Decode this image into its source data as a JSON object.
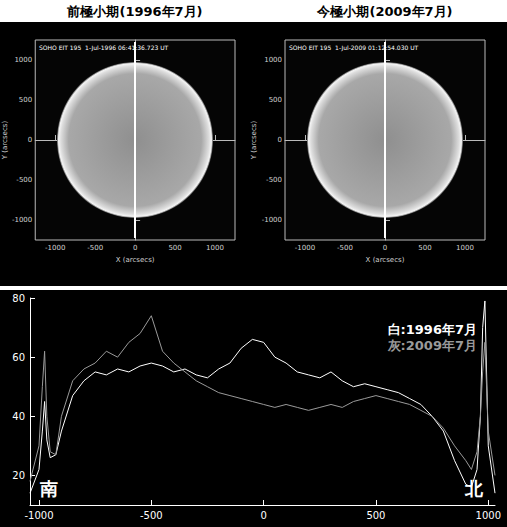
{
  "images": [
    {
      "title": "前極小期(1996年7月)",
      "caption": "SOHO EIT 195  1-Jul-1996 06:41:36.723 UT",
      "xlabel": "X (arcsecs)",
      "ylabel": "Y (arcsecs)",
      "xlim": [
        -1250,
        1250
      ],
      "xticks": [
        -1000,
        -500,
        0,
        500,
        1000
      ],
      "ylim": [
        -1250,
        1250
      ],
      "yticks": [
        -1000,
        -500,
        0,
        500,
        1000
      ]
    },
    {
      "title": "今極小期(2009年7月)",
      "caption": "SOHO EIT 195  1-Jul-2009 01:12:54.030 UT",
      "xlabel": "X (arcsecs)",
      "ylabel": "Y (arcsecs)",
      "xlim": [
        -1250,
        1250
      ],
      "xticks": [
        -1000,
        -500,
        0,
        500,
        1000
      ],
      "ylim": [
        -1250,
        1250
      ],
      "yticks": [
        -1000,
        -500,
        0,
        500,
        1000
      ]
    }
  ],
  "chart_data": {
    "type": "line",
    "x": [
      -1040,
      -1000,
      -985,
      -975,
      -965,
      -950,
      -925,
      -900,
      -850,
      -800,
      -750,
      -700,
      -650,
      -600,
      -550,
      -500,
      -450,
      -400,
      -350,
      -300,
      -250,
      -200,
      -150,
      -100,
      -50,
      0,
      50,
      100,
      150,
      200,
      250,
      300,
      350,
      400,
      450,
      500,
      550,
      600,
      650,
      700,
      750,
      800,
      850,
      900,
      925,
      950,
      965,
      975,
      985,
      1000,
      1030
    ],
    "series": [
      {
        "name": "白:1996年7月",
        "color": "#ffffff",
        "values": [
          14,
          22,
          35,
          45,
          32,
          26,
          27,
          35,
          47,
          52,
          55,
          54,
          56,
          55,
          57,
          58,
          57,
          55,
          56,
          54,
          53,
          56,
          58,
          63,
          66,
          65,
          60,
          58,
          55,
          54,
          53,
          55,
          52,
          50,
          51,
          50,
          49,
          48,
          46,
          44,
          40,
          35,
          25,
          17,
          16,
          22,
          40,
          70,
          79,
          30,
          14
        ]
      },
      {
        "name": "灰:2009年7月",
        "color": "#9a9a9a",
        "values": [
          18,
          30,
          50,
          62,
          40,
          28,
          27,
          40,
          52,
          56,
          58,
          62,
          60,
          65,
          68,
          74,
          62,
          58,
          55,
          52,
          50,
          48,
          47,
          46,
          45,
          44,
          43,
          44,
          43,
          42,
          43,
          44,
          43,
          45,
          46,
          47,
          46,
          45,
          44,
          42,
          40,
          36,
          30,
          25,
          22,
          28,
          40,
          55,
          65,
          35,
          20
        ]
      }
    ],
    "xlim": [
      -1040,
      1030
    ],
    "xticks": [
      -1000,
      -500,
      0,
      500,
      1000
    ],
    "ylim": [
      10,
      80
    ],
    "yticks": [
      20,
      40,
      60,
      80
    ],
    "annotations": [
      "南",
      "北"
    ],
    "legend": "upper right",
    "grid": false
  }
}
